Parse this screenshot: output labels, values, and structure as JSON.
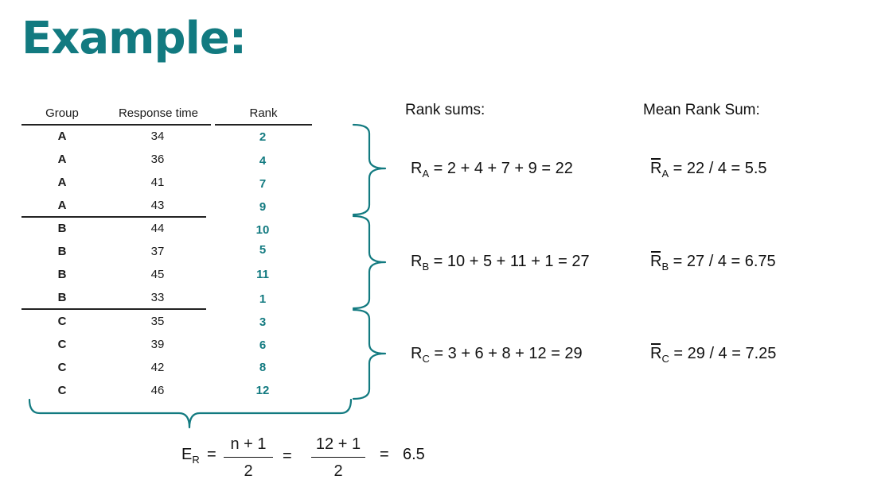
{
  "title": "Example:",
  "table": {
    "headers": {
      "group": "Group",
      "time": "Response time",
      "rank": "Rank"
    },
    "rows": [
      {
        "group": "A",
        "time": "34",
        "rank": "2"
      },
      {
        "group": "A",
        "time": "36",
        "rank": "4"
      },
      {
        "group": "A",
        "time": "41",
        "rank": "7"
      },
      {
        "group": "A",
        "time": "43",
        "rank": "9"
      },
      {
        "group": "B",
        "time": "44",
        "rank": "10"
      },
      {
        "group": "B",
        "time": "37",
        "rank": "5"
      },
      {
        "group": "B",
        "time": "45",
        "rank": "11"
      },
      {
        "group": "B",
        "time": "33",
        "rank": "1"
      },
      {
        "group": "C",
        "time": "35",
        "rank": "3"
      },
      {
        "group": "C",
        "time": "39",
        "rank": "6"
      },
      {
        "group": "C",
        "time": "42",
        "rank": "8"
      },
      {
        "group": "C",
        "time": "46",
        "rank": "12"
      }
    ]
  },
  "rank_sums_label": "Rank sums:",
  "mean_rank_sum_label": "Mean Rank Sum:",
  "rank_sums": [
    {
      "symbol": "R",
      "sub": "A",
      "expr": " = 2 + 4 + 7 + 9 = 22"
    },
    {
      "symbol": "R",
      "sub": "B",
      "expr": " = 10 + 5 + 11 + 1 = 27"
    },
    {
      "symbol": "R",
      "sub": "C",
      "expr": " = 3 + 6 + 8 + 12 = 29"
    }
  ],
  "mean_rank_sums": [
    {
      "symbol": "R",
      "sub": "A",
      "expr": " = 22 / 4 = 5.5"
    },
    {
      "symbol": "R",
      "sub": "B",
      "expr": " = 27 / 4 = 6.75"
    },
    {
      "symbol": "R",
      "sub": "C",
      "expr": " = 29 / 4 = 7.25"
    }
  ],
  "expected": {
    "symbol": "E",
    "sub": "R",
    "eq1": "=",
    "frac1_num": "n + 1",
    "frac1_den": "2",
    "eq2": "=",
    "frac2_num": "12 + 1",
    "frac2_den": "2",
    "eq3": "=",
    "result": "6.5"
  }
}
